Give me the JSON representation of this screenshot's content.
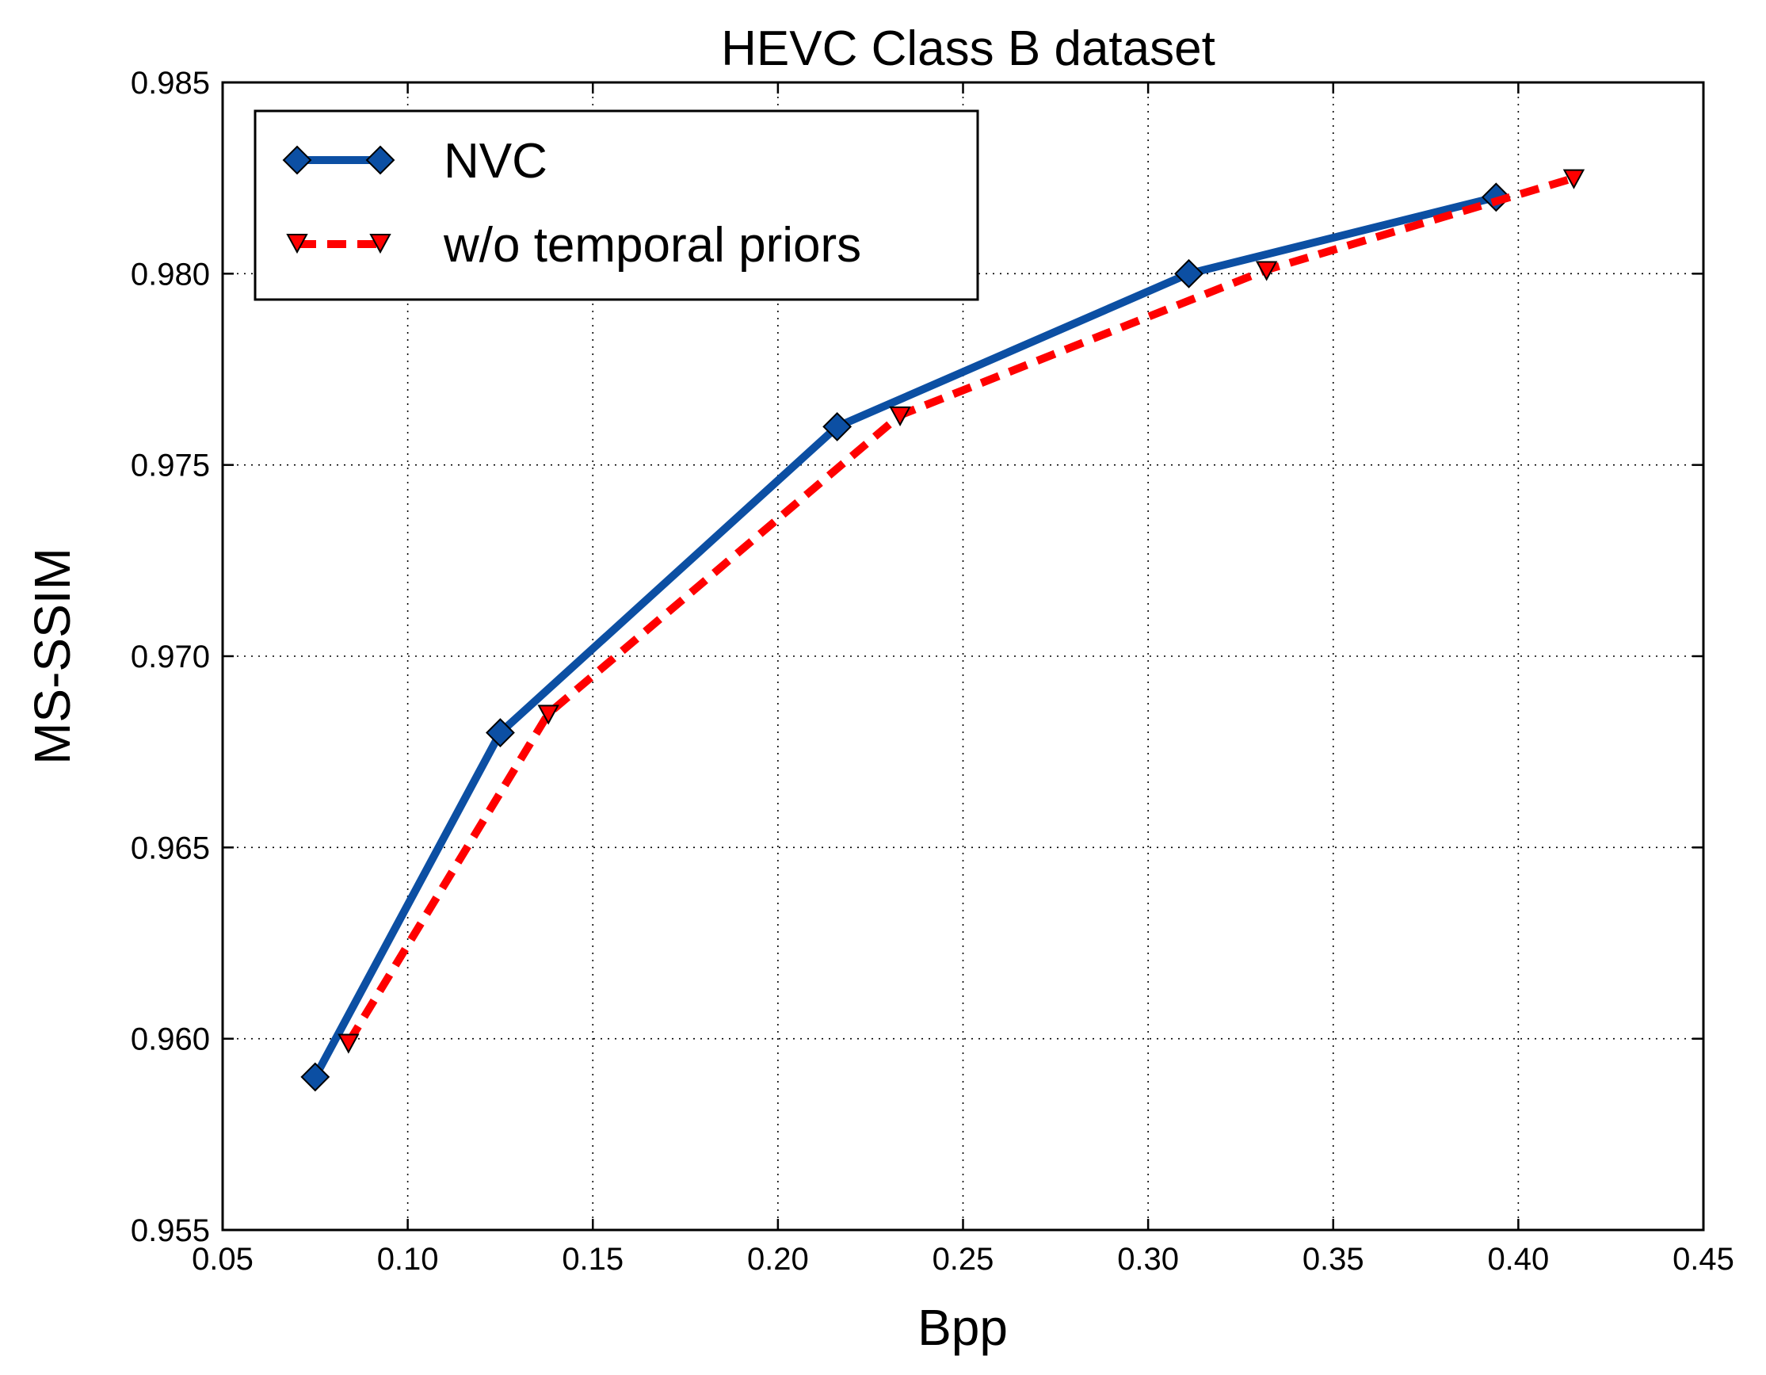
{
  "chart_data": {
    "type": "line",
    "title": "HEVC Class B dataset",
    "xlabel": "Bpp",
    "ylabel": "MS-SSIM",
    "xlim": [
      0.05,
      0.45
    ],
    "ylim": [
      0.955,
      0.985
    ],
    "x_ticks": [
      "0.05",
      "0.10",
      "0.15",
      "0.20",
      "0.25",
      "0.30",
      "0.35",
      "0.40",
      "0.45"
    ],
    "y_ticks": [
      "0.955",
      "0.960",
      "0.965",
      "0.970",
      "0.975",
      "0.980",
      "0.985"
    ],
    "grid": true,
    "legend_position": "top-left",
    "series": [
      {
        "name": "NVC",
        "color": "#0c4fa3",
        "line_style": "solid",
        "marker": "diamond",
        "x": [
          0.075,
          0.125,
          0.216,
          0.311,
          0.394
        ],
        "y": [
          0.959,
          0.968,
          0.976,
          0.98,
          0.982
        ]
      },
      {
        "name": "w/o temporal priors",
        "color": "#ff0000",
        "line_style": "dashed",
        "marker": "triangle-down",
        "x": [
          0.084,
          0.138,
          0.233,
          0.332,
          0.415
        ],
        "y": [
          0.9599,
          0.9685,
          0.9763,
          0.9801,
          0.9825
        ]
      }
    ]
  }
}
